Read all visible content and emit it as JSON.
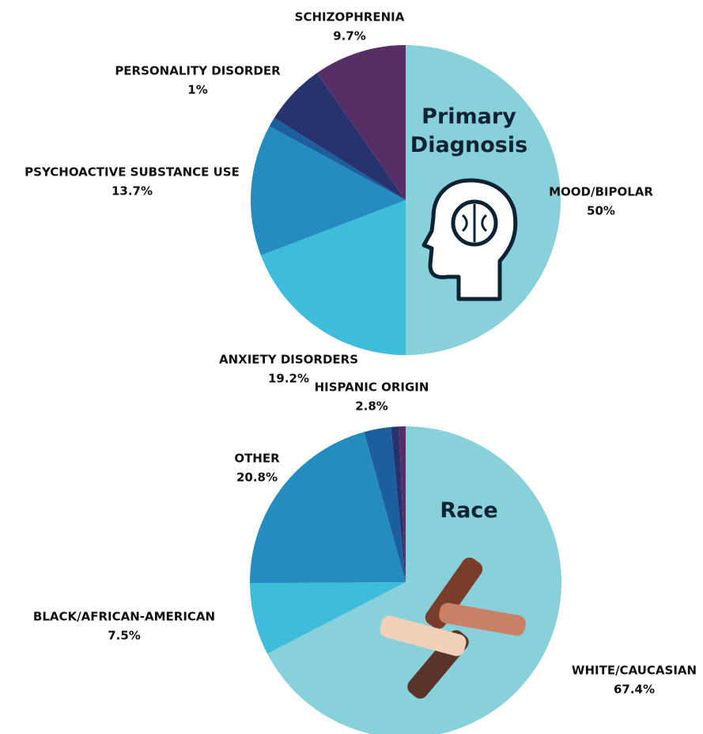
{
  "chart_data": [
    {
      "type": "pie",
      "title": "Primary Diagnosis",
      "categories": [
        "MOOD/BIPOLAR",
        "ANXIETY DISORDERS",
        "PSYCHOACTIVE SUBSTANCE USE",
        "PERSONALITY DISORDER",
        null,
        "SCHIZOPHRENIA"
      ],
      "values": [
        50,
        19.2,
        13.7,
        1,
        6.4,
        9.7
      ],
      "value_labels": [
        "50%",
        "19.2%",
        "13.7%",
        "1%",
        null,
        "9.7%"
      ],
      "colors": [
        "#88d1da",
        "#3dbcdb",
        "#258cbf",
        "#1b5f9e",
        "#27336f",
        "#562f66"
      ]
    },
    {
      "type": "pie",
      "title": "Race",
      "categories": [
        "WHITE/CAUCASIAN",
        "BLACK/AFRICAN-AMERICAN",
        "OTHER",
        "HISPANIC ORIGIN",
        null,
        null
      ],
      "values": [
        67.4,
        7.5,
        20.8,
        2.8,
        0.8,
        0.7
      ],
      "value_labels": [
        "67.4%",
        "7.5%",
        "20.8%",
        "2.8%",
        null,
        null
      ],
      "colors": [
        "#88d1da",
        "#3dbcdb",
        "#258cbf",
        "#1b5f9e",
        "#27336f",
        "#562f66"
      ]
    }
  ]
}
